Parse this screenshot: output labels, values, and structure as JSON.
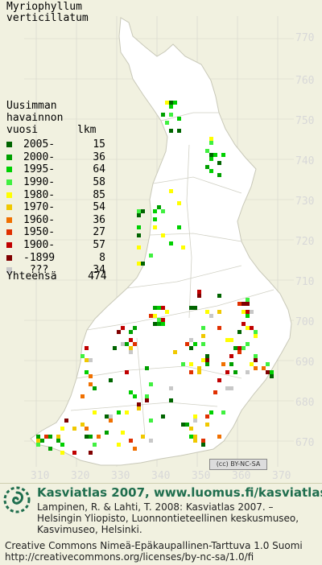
{
  "species": [
    "Myriophyllum",
    "verticillatum"
  ],
  "legend_header": [
    "Uusimman",
    "havainnon",
    "vuosi",
    "lkm"
  ],
  "legend": [
    {
      "label": "2005-",
      "count": "15",
      "color": "#006400"
    },
    {
      "label": "2000-",
      "count": "36",
      "color": "#00a000"
    },
    {
      "label": "1995-",
      "count": "64",
      "color": "#00d000"
    },
    {
      "label": "1990-",
      "count": "58",
      "color": "#40f040"
    },
    {
      "label": "1980-",
      "count": "85",
      "color": "#ffff00"
    },
    {
      "label": "1970-",
      "count": "54",
      "color": "#f0c800"
    },
    {
      "label": "1960-",
      "count": "36",
      "color": "#f07000"
    },
    {
      "label": "1950-",
      "count": "27",
      "color": "#e03000"
    },
    {
      "label": "1900-",
      "count": "57",
      "color": "#c00000"
    },
    {
      "label": "-1899",
      "count": "8",
      "color": "#800000"
    },
    {
      "label": " ???",
      "count": "34",
      "color": "#c8c8c8"
    }
  ],
  "total": {
    "label": "Yhteensä",
    "count": "474"
  },
  "y_ticks": [
    "770",
    "760",
    "750",
    "740",
    "730",
    "720",
    "710",
    "700",
    "690",
    "680",
    "670"
  ],
  "x_ticks": [
    "310",
    "320",
    "330",
    "340",
    "350",
    "360",
    "370"
  ],
  "cc_badge": "(cc) BY-NC-SA",
  "brand": "Kasviatlas 2007, www.luomus.fi/kasviatlas",
  "citation": "Lampinen, R. & Lahti, T. 2008: Kasviatlas 2007. – Helsingin Yliopisto, Luonnontieteellinen keskusmuseo, Kasvimuseo, Helsinki.",
  "license": "Creative Commons Nimeä-Epäkaupallinen-Tarttuva 1.0 Suomi http://creativecommons.org/licenses/by-nc-sa/1.0/fi",
  "colors": {
    "background": "#f1f1e0",
    "land": "#ffffff",
    "grid": "#dcdcd0",
    "brand": "#1f6e4e"
  }
}
